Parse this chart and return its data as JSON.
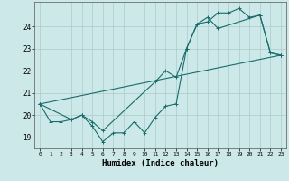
{
  "title": "",
  "xlabel": "Humidex (Indice chaleur)",
  "ylabel": "",
  "bg_color": "#cce8e8",
  "grid_color": "#aacccc",
  "line_color": "#1a6b6b",
  "xlim": [
    -0.5,
    23.5
  ],
  "ylim": [
    18.5,
    25.1
  ],
  "yticks": [
    19,
    20,
    21,
    22,
    23,
    24
  ],
  "xticks": [
    0,
    1,
    2,
    3,
    4,
    5,
    6,
    7,
    8,
    9,
    10,
    11,
    12,
    13,
    14,
    15,
    16,
    17,
    18,
    19,
    20,
    21,
    22,
    23
  ],
  "series1_x": [
    0,
    1,
    2,
    3,
    4,
    5,
    6,
    7,
    8,
    9,
    10,
    11,
    12,
    13,
    14,
    15,
    16,
    17,
    18,
    19,
    20,
    21,
    22,
    23
  ],
  "series1_y": [
    20.5,
    19.7,
    19.7,
    19.8,
    20.0,
    19.5,
    18.8,
    19.2,
    19.2,
    19.7,
    19.2,
    19.9,
    20.4,
    20.5,
    23.0,
    24.1,
    24.2,
    24.6,
    24.6,
    24.8,
    24.4,
    24.5,
    22.8,
    22.7
  ],
  "series2_x": [
    0,
    3,
    4,
    5,
    6,
    11,
    12,
    13,
    14,
    15,
    16,
    17,
    21,
    22,
    23
  ],
  "series2_y": [
    20.5,
    19.8,
    20.0,
    19.7,
    19.3,
    21.5,
    22.0,
    21.7,
    23.0,
    24.1,
    24.4,
    23.9,
    24.5,
    22.8,
    22.7
  ],
  "series3_x": [
    0,
    23
  ],
  "series3_y": [
    20.5,
    22.7
  ]
}
